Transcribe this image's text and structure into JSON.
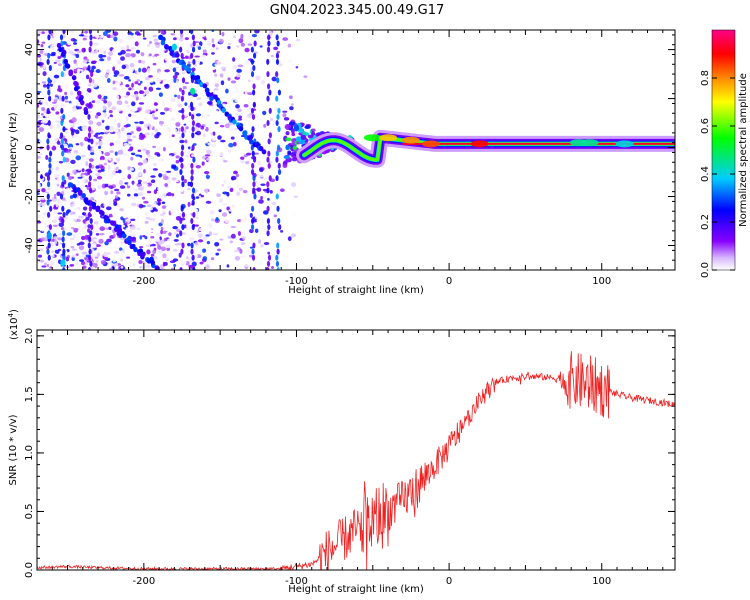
{
  "title": "GN04.2023.345.00.49.G17",
  "chart_data": [
    {
      "type": "heatmap",
      "xlabel": "Height of straight line (km)",
      "ylabel": "Frequency (Hz)",
      "xlim": [
        -270,
        148
      ],
      "ylim": [
        -50,
        48
      ],
      "x_ticks": [
        -200,
        -100,
        0,
        100
      ],
      "y_ticks": [
        -40,
        -20,
        0,
        20,
        40
      ],
      "colorbar": {
        "label": "Normalized spectral amplitude",
        "range": [
          0,
          1
        ],
        "ticks": [
          "0.0",
          "0.2",
          "0.4",
          "0.6",
          "0.8"
        ],
        "tick_values": [
          0.0,
          0.2,
          0.4,
          0.6,
          0.8
        ],
        "colormap": [
          "#ffffff",
          "#8800ff",
          "#0000ff",
          "#00ccff",
          "#00ff00",
          "#ffff00",
          "#ff8800",
          "#ff0000",
          "#ff0088"
        ]
      },
      "features": [
        {
          "desc": "steady carrier tone",
          "x_from": -70,
          "x_to": 148,
          "freq": 1.5,
          "amplitude": 0.95
        },
        {
          "desc": "diagonal chirp",
          "x_from": -190,
          "x_to": -120,
          "freq_from": 45,
          "freq_to": 0
        },
        {
          "desc": "lower diagonal chirp",
          "x_from": -250,
          "x_to": -190,
          "freq_from": -15,
          "freq_to": -50
        }
      ]
    },
    {
      "type": "line",
      "xlabel": "Height of straight line (km)",
      "ylabel": "SNR (10 * v/v)",
      "y_multiplier": "(x10",
      "y_multiplier_exp": "4",
      "xlim": [
        -270,
        148
      ],
      "ylim": [
        0,
        2.05
      ],
      "x_ticks": [
        -200,
        -100,
        0,
        100
      ],
      "y_ticks": [
        0.0,
        0.5,
        1.0,
        1.5,
        2.0
      ],
      "y_tick_labels": [
        "0.0",
        "0.5",
        "1.0",
        "1.5",
        "2.0"
      ],
      "color": "#ee2222",
      "series": [
        {
          "x": [
            -270,
            -250,
            -230,
            -200,
            -170,
            -140,
            -110,
            -100,
            -90,
            -80,
            -70,
            -60,
            -50,
            -40,
            -30,
            -20,
            -10,
            0,
            10,
            20,
            30,
            40,
            50,
            60,
            70,
            80,
            90,
            100,
            110,
            120,
            130,
            140,
            148
          ],
          "y": [
            0.02,
            0.03,
            0.02,
            0.01,
            0.01,
            0.01,
            0.01,
            0.03,
            0.05,
            0.15,
            0.25,
            0.35,
            0.42,
            0.5,
            0.6,
            0.72,
            0.88,
            1.05,
            1.25,
            1.45,
            1.6,
            1.64,
            1.65,
            1.65,
            1.64,
            1.62,
            1.6,
            1.55,
            1.5,
            1.47,
            1.45,
            1.43,
            1.41
          ]
        }
      ]
    }
  ]
}
